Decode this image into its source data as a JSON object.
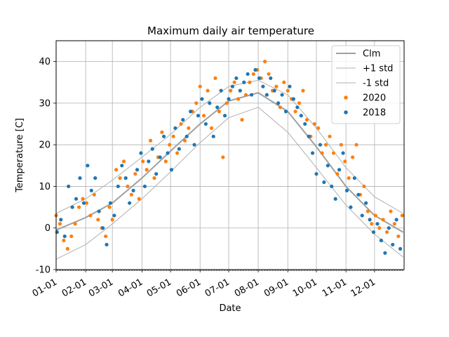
{
  "chart_data": {
    "type": "scatter",
    "title": "Maximum daily air temperature",
    "xlabel": "Date",
    "ylabel": "Temperature [C]",
    "xlim": [
      "01-01",
      "12-31"
    ],
    "ylim": [
      -10,
      45
    ],
    "yticks": [
      -10,
      0,
      10,
      20,
      30,
      40
    ],
    "xticks": [
      "01-01",
      "02-01",
      "03-01",
      "04-01",
      "05-01",
      "06-01",
      "07-01",
      "08-01",
      "09-01",
      "10-01",
      "11-01",
      "12-01"
    ],
    "grid": true,
    "legend_position": "top-right",
    "series": [
      {
        "name": "Clm",
        "kind": "line",
        "color": "#a0a0a0",
        "x": [
          "01-01",
          "02-01",
          "03-01",
          "04-01",
          "05-01",
          "06-01",
          "07-01",
          "08-01",
          "09-01",
          "10-01",
          "11-01",
          "12-01",
          "12-31"
        ],
        "y": [
          -0.5,
          2.5,
          6.0,
          12.0,
          18.5,
          25.0,
          30.5,
          32.5,
          28.0,
          19.5,
          10.0,
          3.0,
          -1.0
        ]
      },
      {
        "name": "+1 std",
        "kind": "line",
        "color": "#b0b0b0",
        "x": [
          "01-01",
          "02-01",
          "03-01",
          "04-01",
          "05-01",
          "06-01",
          "07-01",
          "08-01",
          "09-01",
          "10-01",
          "11-01",
          "12-01",
          "12-31"
        ],
        "y": [
          3.5,
          7.0,
          11.5,
          17.0,
          22.5,
          29.0,
          34.0,
          35.5,
          32.0,
          24.0,
          14.5,
          7.5,
          3.5
        ]
      },
      {
        "name": "-1 std",
        "kind": "line",
        "color": "#b0b0b0",
        "x": [
          "01-01",
          "02-01",
          "03-01",
          "04-01",
          "05-01",
          "06-01",
          "07-01",
          "08-01",
          "09-01",
          "10-01",
          "11-01",
          "12-01",
          "12-31"
        ],
        "y": [
          -7.5,
          -4.0,
          1.0,
          7.0,
          13.5,
          20.5,
          26.5,
          29.0,
          23.0,
          14.5,
          5.5,
          -1.5,
          -7.0
        ]
      },
      {
        "name": "2020",
        "kind": "scatter",
        "color": "#ff7f0e",
        "x": [
          "01-01",
          "01-05",
          "01-09",
          "01-13",
          "01-17",
          "01-21",
          "01-25",
          "01-29",
          "02-02",
          "02-06",
          "02-10",
          "02-14",
          "02-18",
          "02-22",
          "02-26",
          "03-01",
          "03-05",
          "03-09",
          "03-13",
          "03-17",
          "03-21",
          "03-25",
          "03-29",
          "04-02",
          "04-06",
          "04-10",
          "04-14",
          "04-18",
          "04-22",
          "04-26",
          "04-30",
          "05-04",
          "05-08",
          "05-12",
          "05-16",
          "05-20",
          "05-24",
          "05-28",
          "06-01",
          "06-05",
          "06-09",
          "06-13",
          "06-17",
          "06-21",
          "06-25",
          "06-29",
          "07-03",
          "07-07",
          "07-11",
          "07-15",
          "07-19",
          "07-23",
          "07-27",
          "07-31",
          "08-04",
          "08-08",
          "08-12",
          "08-16",
          "08-20",
          "08-24",
          "08-28",
          "09-01",
          "09-05",
          "09-09",
          "09-13",
          "09-17",
          "09-21",
          "09-25",
          "09-29",
          "10-03",
          "10-07",
          "10-11",
          "10-15",
          "10-19",
          "10-23",
          "10-27",
          "10-31",
          "11-04",
          "11-08",
          "11-12",
          "11-16",
          "11-20",
          "11-24",
          "11-28",
          "12-02",
          "12-06",
          "12-10",
          "12-14",
          "12-18",
          "12-22",
          "12-26",
          "12-30"
        ],
        "y": [
          3,
          1,
          -3,
          -5,
          -2,
          1,
          5,
          7,
          6,
          3,
          8,
          2,
          0,
          -2,
          5,
          2,
          14,
          12,
          16,
          10,
          8,
          13,
          7,
          16,
          14,
          21,
          12,
          17,
          23,
          16,
          20,
          22,
          18,
          25,
          21,
          24,
          28,
          30,
          34,
          27,
          33,
          24,
          36,
          28,
          17,
          30,
          33,
          35,
          31,
          26,
          32,
          35,
          37,
          38,
          36,
          40,
          37,
          33,
          34,
          29,
          35,
          33,
          31,
          28,
          30,
          33,
          26,
          22,
          25,
          24,
          18,
          20,
          22,
          18,
          13,
          20,
          16,
          12,
          17,
          20,
          8,
          10,
          4,
          1,
          3,
          0,
          2,
          -1,
          4,
          1,
          -2,
          3
        ]
      },
      {
        "name": "2018",
        "kind": "scatter",
        "color": "#1f77b4",
        "x": [
          "01-02",
          "01-06",
          "01-10",
          "01-14",
          "01-18",
          "01-22",
          "01-26",
          "01-30",
          "02-03",
          "02-07",
          "02-11",
          "02-15",
          "02-19",
          "02-23",
          "02-27",
          "03-03",
          "03-07",
          "03-11",
          "03-15",
          "03-19",
          "03-23",
          "03-27",
          "03-31",
          "04-04",
          "04-08",
          "04-12",
          "04-16",
          "04-20",
          "04-24",
          "04-28",
          "05-02",
          "05-06",
          "05-10",
          "05-14",
          "05-18",
          "05-22",
          "05-26",
          "05-30",
          "06-03",
          "06-07",
          "06-11",
          "06-15",
          "06-19",
          "06-23",
          "06-27",
          "07-01",
          "07-05",
          "07-09",
          "07-13",
          "07-17",
          "07-21",
          "07-25",
          "07-29",
          "08-02",
          "08-06",
          "08-10",
          "08-14",
          "08-18",
          "08-22",
          "08-26",
          "08-30",
          "09-03",
          "09-07",
          "09-11",
          "09-15",
          "09-19",
          "09-23",
          "09-27",
          "10-01",
          "10-05",
          "10-09",
          "10-13",
          "10-17",
          "10-21",
          "10-25",
          "10-29",
          "11-02",
          "11-06",
          "11-10",
          "11-14",
          "11-18",
          "11-22",
          "11-26",
          "11-30",
          "12-04",
          "12-08",
          "12-12",
          "12-16",
          "12-20",
          "12-24",
          "12-28"
        ],
        "y": [
          -1,
          2,
          -2,
          10,
          5,
          7,
          12,
          6,
          15,
          9,
          12,
          4,
          0,
          -4,
          6,
          3,
          10,
          15,
          12,
          6,
          9,
          14,
          18,
          10,
          16,
          19,
          13,
          17,
          22,
          18,
          14,
          24,
          19,
          26,
          22,
          28,
          20,
          27,
          31,
          25,
          30,
          22,
          29,
          33,
          27,
          31,
          34,
          36,
          33,
          35,
          37,
          32,
          38,
          36,
          34,
          32,
          36,
          33,
          30,
          32,
          28,
          34,
          31,
          29,
          27,
          25,
          22,
          18,
          13,
          20,
          11,
          15,
          10,
          7,
          14,
          18,
          9,
          5,
          12,
          8,
          3,
          6,
          2,
          -1,
          1,
          -3,
          -6,
          0,
          -4,
          2,
          -5
        ]
      }
    ],
    "legend": [
      {
        "label": "Clm",
        "kind": "line",
        "color": "#a0a0a0",
        "thick": true
      },
      {
        "label": "+1 std",
        "kind": "line",
        "color": "#b0b0b0",
        "thick": false
      },
      {
        "label": "-1 std",
        "kind": "line",
        "color": "#b0b0b0",
        "thick": false
      },
      {
        "label": "2020",
        "kind": "marker",
        "color": "#ff7f0e"
      },
      {
        "label": "2018",
        "kind": "marker",
        "color": "#1f77b4"
      }
    ]
  }
}
